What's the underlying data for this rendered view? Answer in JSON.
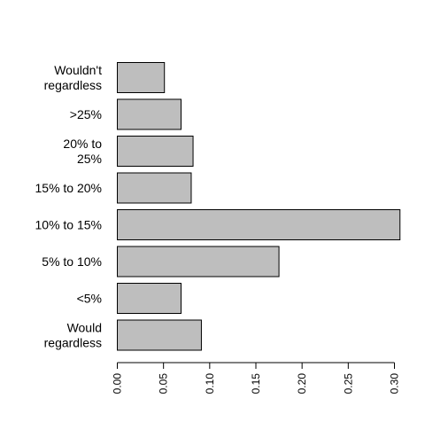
{
  "chart_data": {
    "type": "bar",
    "orientation": "horizontal",
    "title": "",
    "xlabel": "",
    "ylabel": "",
    "categories": [
      [
        "Would",
        "regardless"
      ],
      [
        "<5%"
      ],
      [
        "5% to 10%"
      ],
      [
        "10% to 15%"
      ],
      [
        "15% to 20%"
      ],
      [
        "20% to",
        "25%"
      ],
      [
        ">25%"
      ],
      [
        "Wouldn't",
        "regardless"
      ]
    ],
    "values": [
      0.091,
      0.069,
      0.175,
      0.306,
      0.08,
      0.082,
      0.069,
      0.051
    ],
    "xlim": [
      0,
      0.3
    ],
    "xticks": [
      "0.00",
      "0.05",
      "0.10",
      "0.15",
      "0.20",
      "0.25",
      "0.30"
    ],
    "grid": false,
    "legend": "none",
    "colors": {
      "bar_fill": "#bebebe",
      "bar_stroke": "#000000"
    }
  }
}
